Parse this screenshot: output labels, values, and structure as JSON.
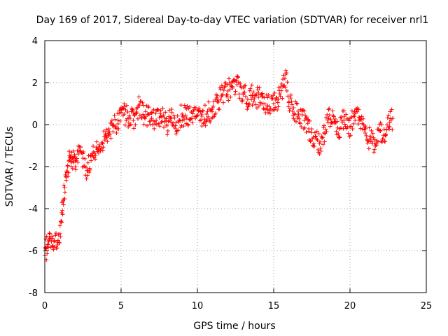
{
  "chart_data": {
    "type": "scatter",
    "title": "Day 169 of 2017, Sidereal Day-to-day VTEC variation (SDTVAR) for receiver nrl1",
    "xlabel": "GPS time / hours",
    "ylabel": "SDTVAR / TECUs",
    "xlim": [
      0,
      25
    ],
    "ylim": [
      -8,
      4
    ],
    "xticks": [
      0,
      5,
      10,
      15,
      20,
      25
    ],
    "yticks": [
      -8,
      -6,
      -4,
      -2,
      0,
      2,
      4
    ],
    "grid": true,
    "marker": "plus",
    "series": [
      {
        "name": "nrl1",
        "color": "#ff0000",
        "x": [
          0.0,
          0.1,
          0.2,
          0.3,
          0.5,
          0.8,
          1.0,
          1.1,
          1.2,
          1.3,
          1.4,
          1.5,
          1.6,
          1.7,
          1.8,
          1.9,
          2.0,
          2.2,
          2.5,
          2.8,
          3.0,
          3.2,
          3.5,
          3.8,
          4.0,
          4.2,
          4.5,
          4.8,
          5.0,
          5.2,
          5.5,
          5.8,
          6.0,
          6.2,
          6.5,
          6.8,
          7.0,
          7.3,
          7.6,
          8.0,
          8.3,
          8.6,
          9.0,
          9.3,
          9.6,
          10.0,
          10.3,
          10.6,
          11.0,
          11.3,
          11.6,
          12.0,
          12.3,
          12.6,
          13.0,
          13.3,
          13.6,
          14.0,
          14.3,
          14.6,
          15.0,
          15.3,
          15.6,
          15.8,
          16.0,
          16.3,
          16.6,
          17.0,
          17.3,
          17.6,
          18.0,
          18.3,
          18.6,
          19.0,
          19.3,
          19.6,
          20.0,
          20.3,
          20.6,
          21.0,
          21.3,
          21.6,
          22.0,
          22.3,
          22.6,
          22.8
        ],
        "y": [
          -6.0,
          -5.9,
          -5.7,
          -5.4,
          -5.8,
          -5.6,
          -5.2,
          -4.2,
          -3.6,
          -3.0,
          -2.5,
          -2.0,
          -1.7,
          -1.5,
          -1.6,
          -1.8,
          -2.0,
          -1.4,
          -1.6,
          -2.2,
          -1.5,
          -1.3,
          -1.2,
          -0.9,
          -0.5,
          -0.2,
          0.0,
          0.2,
          0.8,
          0.5,
          0.3,
          0.2,
          0.6,
          0.9,
          0.4,
          0.5,
          0.3,
          0.2,
          0.4,
          0.0,
          0.3,
          0.1,
          0.5,
          0.3,
          0.6,
          0.7,
          0.4,
          0.5,
          0.8,
          1.1,
          1.4,
          1.6,
          1.8,
          1.9,
          1.5,
          1.2,
          1.4,
          1.3,
          1.0,
          0.9,
          1.0,
          1.2,
          1.8,
          2.4,
          1.1,
          0.8,
          0.4,
          0.2,
          -0.2,
          -0.6,
          -0.9,
          -0.4,
          0.3,
          0.1,
          -0.2,
          0.2,
          -0.1,
          0.4,
          0.2,
          -0.4,
          -0.7,
          -0.9,
          -0.3,
          -0.5,
          0.1,
          0.3
        ]
      }
    ]
  }
}
